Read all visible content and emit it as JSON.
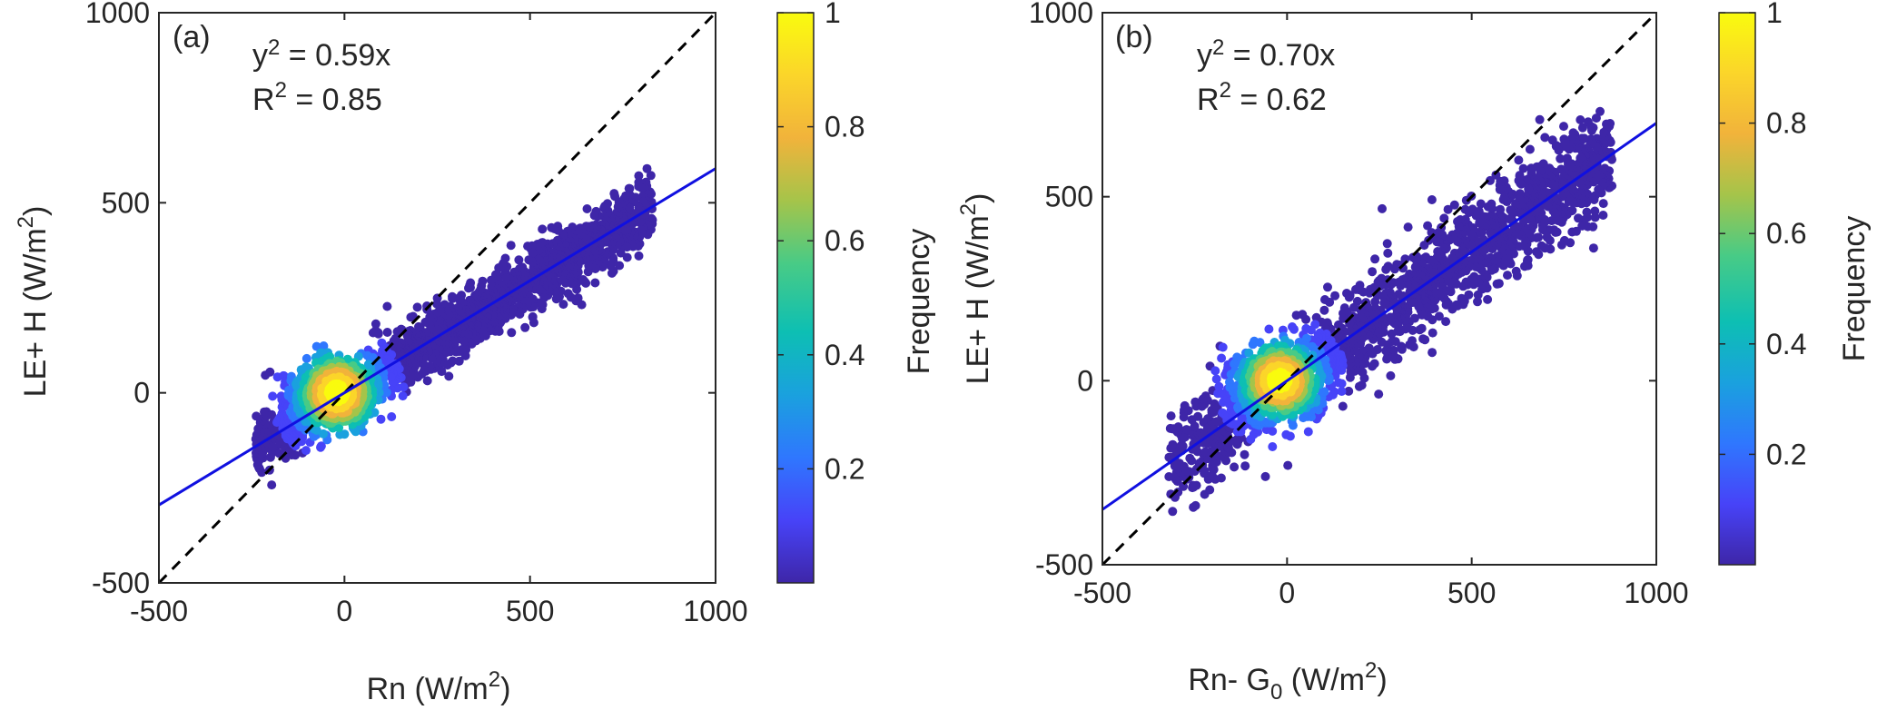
{
  "chart_data": [
    {
      "type": "scatter",
      "panel_label": "(a)",
      "xlabel": "Rn (W/m",
      "xlabel_sup": "2",
      "xlabel_tail": ")",
      "ylabel": "LE+ H (W/m",
      "ylabel_sup": "2",
      "ylabel_tail": ")",
      "xlim": [
        -500,
        1000
      ],
      "ylim": [
        -500,
        1000
      ],
      "xticks": [
        "-500",
        "0",
        "500",
        "1000"
      ],
      "yticks": [
        "-500",
        "0",
        "500",
        "1000"
      ],
      "annotation_eq_prefix": "y",
      "annotation_eq_sub": "2",
      "annotation_eq_rest": " = 0.59x",
      "annotation_r2_prefix": "R",
      "annotation_r2_sup": "2",
      "annotation_r2_rest": " = 0.85",
      "fit_slope": 0.59,
      "r_squared": 0.85,
      "one_to_one_line": true,
      "colorbar": {
        "label": "Frequency",
        "ticks": [
          "0.2",
          "0.4",
          "0.6",
          "0.8",
          "1"
        ],
        "range": [
          0,
          1
        ]
      }
    },
    {
      "type": "scatter",
      "panel_label": "(b)",
      "xlabel": "Rn- G",
      "xlabel_sub": "0",
      "xlabel_mid": " (W/m",
      "xlabel_sup": "2",
      "xlabel_tail": ")",
      "ylabel": "LE+ H (W/m",
      "ylabel_sup": "2",
      "ylabel_tail": ")",
      "xlim": [
        -500,
        1000
      ],
      "ylim": [
        -500,
        1000
      ],
      "xticks": [
        "-500",
        "0",
        "500",
        "1000"
      ],
      "yticks": [
        "-500",
        "0",
        "500",
        "1000"
      ],
      "annotation_eq_prefix": "y",
      "annotation_eq_sub": "2",
      "annotation_eq_rest": " = 0.70x",
      "annotation_r2_prefix": "R",
      "annotation_r2_sup": "2",
      "annotation_r2_rest": " = 0.62",
      "fit_slope": 0.7,
      "r_squared": 0.62,
      "one_to_one_line": true,
      "colorbar": {
        "label": "Frequency",
        "ticks": [
          "0.2",
          "0.4",
          "0.6",
          "0.8",
          "1"
        ],
        "range": [
          0,
          1
        ]
      }
    }
  ],
  "colors": {
    "fit_line": "#1010e0",
    "one_to_one": "#000000",
    "colormap": [
      "#3e26a8",
      "#4743f8",
      "#2f77fe",
      "#1aa1de",
      "#0dbfb3",
      "#48cb86",
      "#a5c44a",
      "#f1b33b",
      "#fbd52a",
      "#f9fb0e"
    ]
  }
}
